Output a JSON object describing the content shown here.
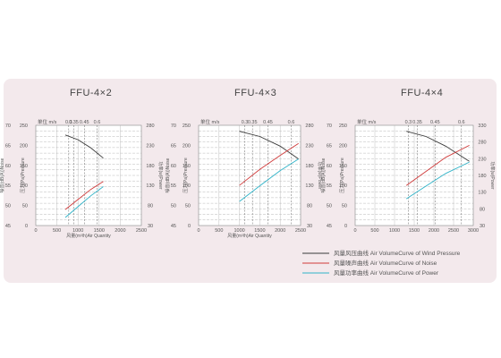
{
  "legend": [
    {
      "label": "风量风压曲线 Air VolumeCurve of Wind Pressure",
      "color": "#3a3a3a"
    },
    {
      "label": "风量噪声曲线 Air VolumeCurve of Noise",
      "color": "#d03a3a"
    },
    {
      "label": "风量功率曲线 Air VolumeCurve of Power",
      "color": "#2fb3c8"
    }
  ],
  "chart_data": [
    {
      "type": "line",
      "title": "FFU-4×2",
      "xlabel": "风量(m³/h)Air Quantity",
      "ylabel_left_outer": "噪音(dB(A))Noise",
      "ylabel_left_inner": "压力(Pa)Pressure",
      "ylabel_right": "功率(w)Power",
      "speed_label": "单位 m/s",
      "xlim": [
        0,
        2500
      ],
      "x_ticks": [
        0,
        500,
        1000,
        1500,
        2000,
        2500
      ],
      "noise_ticks": [
        45,
        50,
        55,
        60,
        65,
        70
      ],
      "pressure_ticks": [
        0,
        50,
        100,
        150,
        200,
        250
      ],
      "power_ticks": [
        30,
        80,
        130,
        180,
        230,
        280
      ],
      "speed_marks": [
        {
          "label": "0.3",
          "x": 780
        },
        {
          "label": "0.35",
          "x": 900
        },
        {
          "label": "0.45",
          "x": 1150
        },
        {
          "label": "0.6",
          "x": 1450
        }
      ],
      "series": [
        {
          "name": "风量风压曲线 Air VolumeCurve of Wind Pressure",
          "axis": "pressure",
          "x": [
            700,
            1000,
            1300,
            1600
          ],
          "y": [
            226,
            214,
            194,
            168
          ]
        },
        {
          "name": "风量噪声曲线 Air VolumeCurve of Noise",
          "axis": "noise",
          "x": [
            700,
            1000,
            1300,
            1600
          ],
          "y": [
            49,
            51.5,
            54,
            56
          ]
        },
        {
          "name": "风量功率曲线 Air VolumeCurve of Power",
          "axis": "power",
          "x": [
            700,
            1000,
            1300,
            1600
          ],
          "y": [
            50,
            77,
            104,
            127
          ]
        }
      ]
    },
    {
      "type": "line",
      "title": "FFU-4×3",
      "xlabel": "风量(m³/h)Air Quantity",
      "ylabel_left_outer": "噪音(dB(A))Noise",
      "ylabel_left_inner": "压力(Pa)Pressure",
      "ylabel_right": "功率(w)Power",
      "speed_label": "单位 m/s",
      "xlim": [
        0,
        2500
      ],
      "x_ticks": [
        0,
        500,
        1000,
        1500,
        2000,
        2500
      ],
      "noise_ticks": [
        45,
        50,
        55,
        60,
        65,
        70
      ],
      "pressure_ticks": [
        0,
        50,
        100,
        150,
        200,
        250
      ],
      "power_ticks": [
        30,
        80,
        130,
        180,
        230,
        280
      ],
      "speed_marks": [
        {
          "label": "0.3",
          "x": 1130
        },
        {
          "label": "0.35",
          "x": 1320
        },
        {
          "label": "0.45",
          "x": 1700
        },
        {
          "label": "0.6",
          "x": 2270
        }
      ],
      "series": [
        {
          "name": "风量风压曲线 Air VolumeCurve of Wind Pressure",
          "axis": "pressure",
          "x": [
            1000,
            1500,
            2000,
            2450
          ],
          "y": [
            235,
            222,
            198,
            166
          ]
        },
        {
          "name": "风量噪声曲线 Air VolumeCurve of Noise",
          "axis": "noise",
          "x": [
            1000,
            1500,
            2000,
            2450
          ],
          "y": [
            55,
            59,
            62.5,
            65.5
          ]
        },
        {
          "name": "风量功率曲线 Air VolumeCurve of Power",
          "axis": "power",
          "x": [
            1000,
            1500,
            2000,
            2450
          ],
          "y": [
            90,
            129,
            167,
            196
          ]
        }
      ]
    },
    {
      "type": "line",
      "title": "FFU-4×4",
      "xlabel": "",
      "ylabel_left_outer": "噪音(dB(A))Noise",
      "ylabel_left_inner": "压力(Pa)Pressure",
      "ylabel_right": "功率(w)Power",
      "speed_label": "单位 m/s",
      "xlim": [
        0,
        3000
      ],
      "x_ticks": [
        0,
        500,
        1000,
        1500,
        2000,
        2500,
        3000
      ],
      "noise_ticks": [
        45,
        50,
        55,
        60,
        65,
        70
      ],
      "pressure_ticks": [
        0,
        50,
        100,
        150,
        200,
        250
      ],
      "power_ticks": [
        30,
        80,
        130,
        180,
        230,
        280,
        330
      ],
      "speed_marks": [
        {
          "label": "0.3",
          "x": 1350
        },
        {
          "label": "0.35",
          "x": 1580
        },
        {
          "label": "0.45",
          "x": 2030
        },
        {
          "label": "0.6",
          "x": 2700
        }
      ],
      "series": [
        {
          "name": "风量风压曲线 Air VolumeCurve of Wind Pressure",
          "axis": "pressure",
          "x": [
            1300,
            1800,
            2300,
            2900
          ],
          "y": [
            235,
            222,
            198,
            160
          ]
        },
        {
          "name": "风量噪声曲线 Air VolumeCurve of Noise",
          "axis": "noise",
          "x": [
            1300,
            1800,
            2300,
            2900
          ],
          "y": [
            55,
            58.5,
            62,
            65
          ]
        },
        {
          "name": "风量功率曲线 Air VolumeCurve of Power",
          "axis": "power",
          "x": [
            1300,
            1800,
            2300,
            2900
          ],
          "y": [
            110,
            148,
            186,
            220
          ]
        }
      ]
    }
  ]
}
